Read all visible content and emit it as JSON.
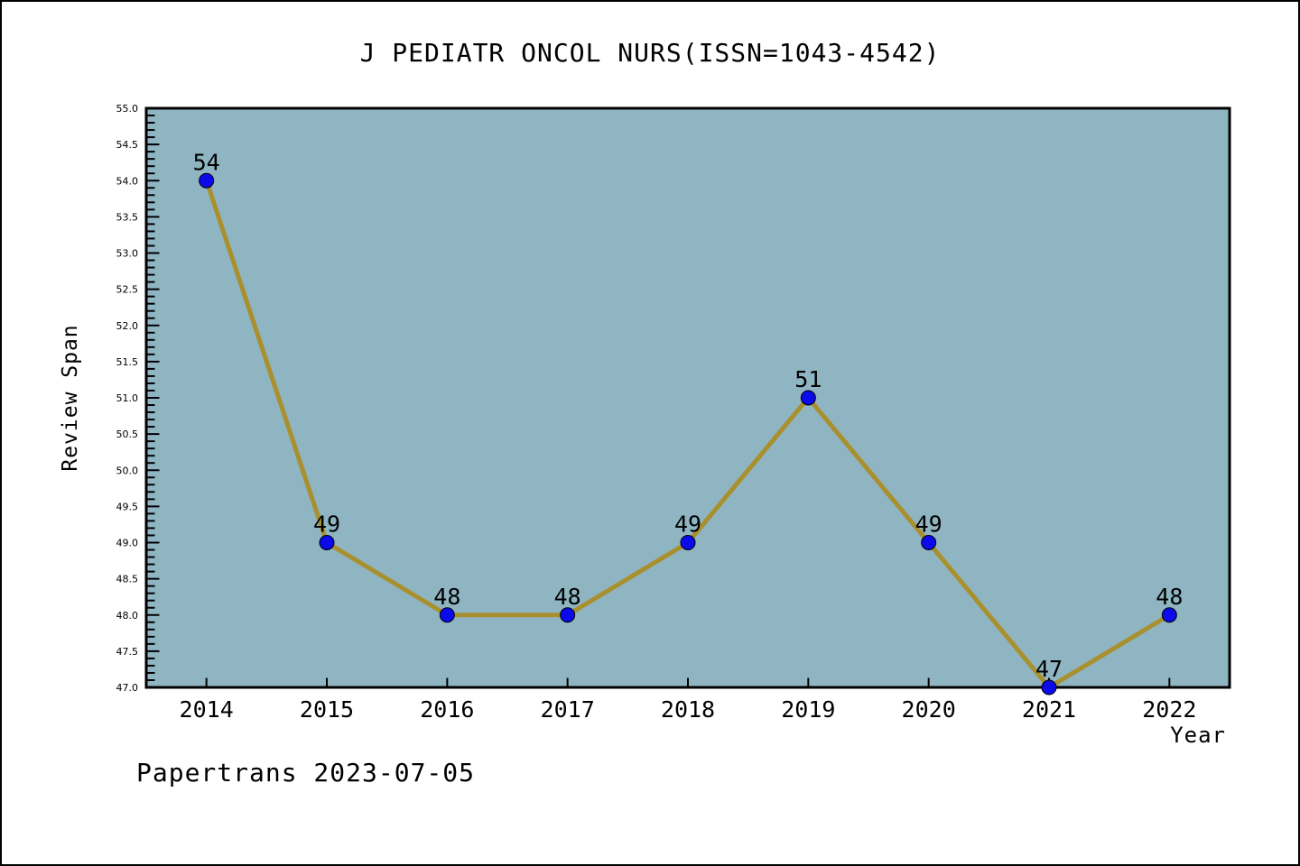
{
  "chart_data": {
    "type": "line",
    "title": "J PEDIATR ONCOL NURS(ISSN=1043-4542)",
    "xlabel": "Year",
    "ylabel": "Review Span",
    "footer": "Papertrans 2023-07-05",
    "categories": [
      "2014",
      "2015",
      "2016",
      "2017",
      "2018",
      "2019",
      "2020",
      "2021",
      "2022"
    ],
    "series": [
      {
        "name": "Review Span",
        "values": [
          54,
          49,
          48,
          48,
          49,
          51,
          49,
          47,
          48
        ]
      }
    ],
    "point_labels": [
      "54",
      "49",
      "48",
      "48",
      "49",
      "51",
      "49",
      "47",
      "48"
    ],
    "ylim": [
      47.0,
      55.0
    ],
    "ytick_step": 0.5,
    "yminor_step": 0.1,
    "ytick_format_decimals": 1,
    "grid": false,
    "legend": "none",
    "colors": {
      "page_bg": "#ffffff",
      "plot_bg": "#8fb5c3",
      "line": "#a8902f",
      "marker_fill": "#0a0aeb",
      "marker_edge": "#000000",
      "axis": "#000000",
      "text": "#000000"
    }
  }
}
